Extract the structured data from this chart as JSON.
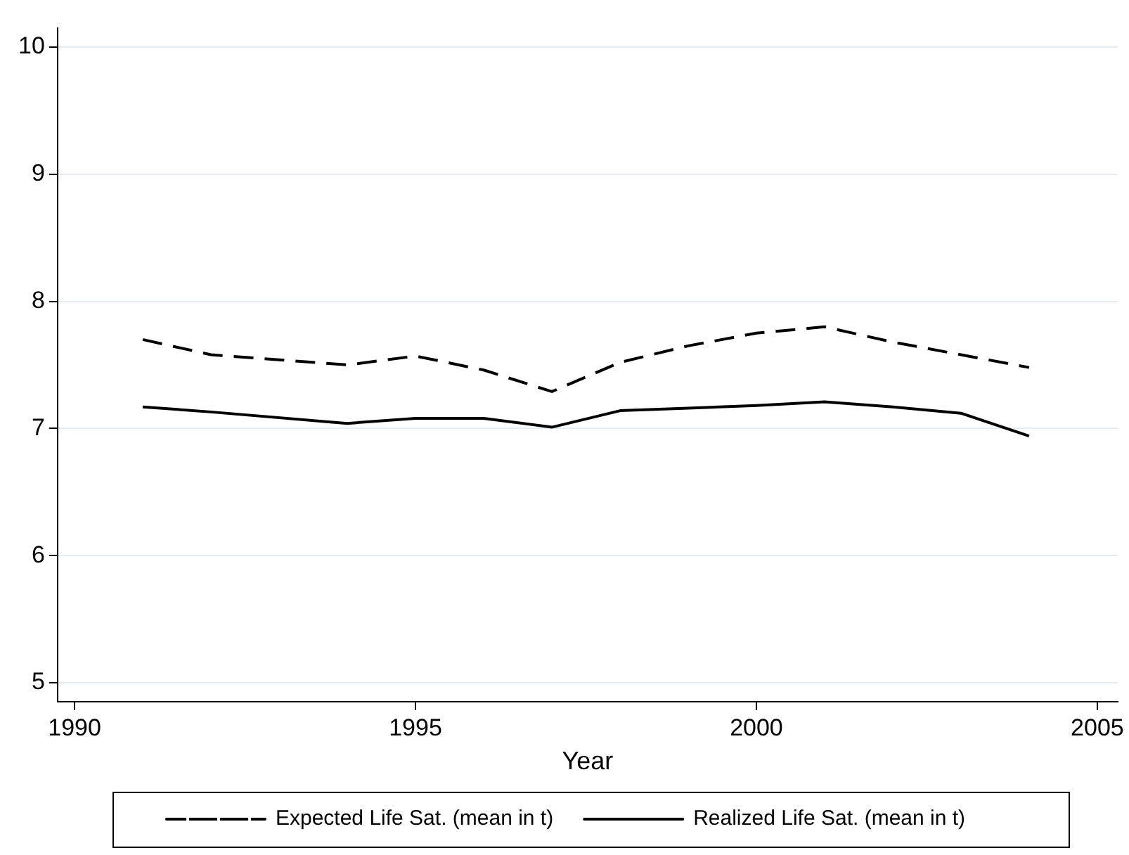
{
  "chart_data": {
    "type": "line",
    "xlabel": "Year",
    "x": [
      1991,
      1992,
      1994,
      1995,
      1996,
      1997,
      1998,
      1999,
      2000,
      2001,
      2002,
      2003,
      2004
    ],
    "series": [
      {
        "name": "Expected Life Sat. (mean in t)",
        "color": "#000000",
        "line_style": "dashed",
        "values": [
          7.7,
          7.58,
          7.5,
          7.57,
          7.46,
          7.29,
          7.52,
          7.65,
          7.75,
          7.8,
          7.68,
          7.58,
          7.48
        ]
      },
      {
        "name": "Realized Life Sat. (mean in t)",
        "color": "#000000",
        "line_style": "solid",
        "values": [
          7.17,
          7.13,
          7.04,
          7.08,
          7.08,
          7.01,
          7.14,
          7.16,
          7.18,
          7.21,
          7.17,
          7.12,
          6.94
        ]
      }
    ],
    "xlim": [
      1989.75,
      2005.3
    ],
    "xticks": [
      1990,
      1995,
      2000,
      2005
    ],
    "ylim": [
      4.85,
      10.15
    ],
    "yticks": [
      5,
      6,
      7,
      8,
      9,
      10
    ],
    "grid": "y",
    "legend": "bottom",
    "marker": "none"
  }
}
